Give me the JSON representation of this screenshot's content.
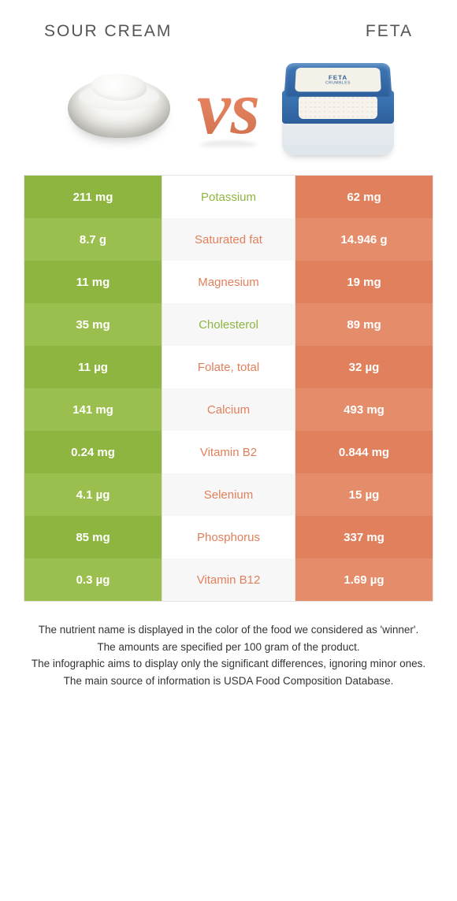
{
  "colors": {
    "green": "#8eb53f",
    "green_light": "#9bbf4f",
    "orange": "#e0805c",
    "orange_light": "#e58d6a",
    "row_alt_a": "#ffffff",
    "row_alt_b": "#f7f7f7",
    "header_text": "#555555",
    "footnote_text": "#333333",
    "border": "#e4e4e4"
  },
  "header": {
    "left_title": "SOUR CREAM",
    "right_title": "FETA"
  },
  "vs_label": "vs",
  "feta_lid_text": "FETA",
  "feta_lid_sub": "CRUMBLES",
  "nutrients": [
    {
      "name": "Potassium",
      "left": "211 mg",
      "right": "62 mg",
      "winner": "left"
    },
    {
      "name": "Saturated fat",
      "left": "8.7 g",
      "right": "14.946 g",
      "winner": "right"
    },
    {
      "name": "Magnesium",
      "left": "11 mg",
      "right": "19 mg",
      "winner": "right"
    },
    {
      "name": "Cholesterol",
      "left": "35 mg",
      "right": "89 mg",
      "winner": "left"
    },
    {
      "name": "Folate, total",
      "left": "11 µg",
      "right": "32 µg",
      "winner": "right"
    },
    {
      "name": "Calcium",
      "left": "141 mg",
      "right": "493 mg",
      "winner": "right"
    },
    {
      "name": "Vitamin B2",
      "left": "0.24 mg",
      "right": "0.844 mg",
      "winner": "right"
    },
    {
      "name": "Selenium",
      "left": "4.1 µg",
      "right": "15 µg",
      "winner": "right"
    },
    {
      "name": "Phosphorus",
      "left": "85 mg",
      "right": "337 mg",
      "winner": "right"
    },
    {
      "name": "Vitamin B12",
      "left": "0.3 µg",
      "right": "1.69 µg",
      "winner": "right"
    }
  ],
  "footnotes": [
    "The nutrient name is displayed in the color of the food we considered as 'winner'.",
    "The amounts are specified per 100 gram of the product.",
    "The infographic aims to display only the significant differences, ignoring minor ones.",
    "The main source of information is USDA Food Composition Database."
  ]
}
